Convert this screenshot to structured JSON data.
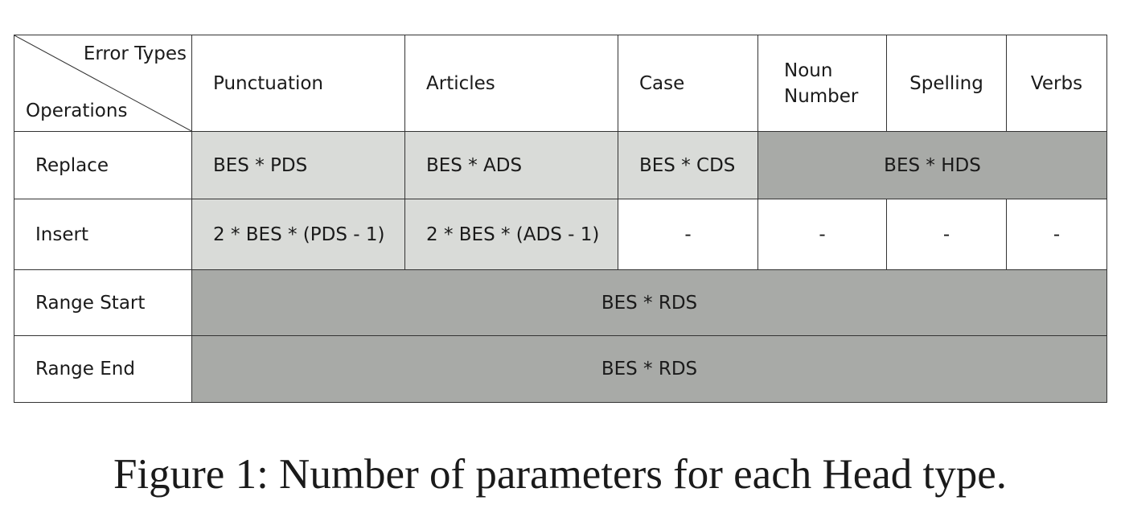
{
  "table": {
    "corner": {
      "col_label": "Error Types",
      "row_label": "Operations"
    },
    "columns": [
      "Punctuation",
      "Articles",
      "Case",
      "Noun Number",
      "Spelling",
      "Verbs"
    ],
    "column_noun_number_lines": [
      "Noun",
      "Number"
    ],
    "rows": [
      {
        "label": "Replace",
        "cells": [
          "BES * PDS",
          "BES * ADS",
          "BES * CDS",
          "BES * HDS"
        ]
      },
      {
        "label": "Insert",
        "cells": [
          "2 * BES * (PDS - 1)",
          "2 * BES * (ADS - 1)",
          "-",
          "-",
          "-",
          "-"
        ]
      },
      {
        "label": "Range Start",
        "cells": [
          "BES * RDS"
        ]
      },
      {
        "label": "Range End",
        "cells": [
          "BES * RDS"
        ]
      }
    ],
    "colors": {
      "light_gray": "#d9dbd8",
      "dark_gray": "#a8aaa7",
      "border": "#333333"
    }
  },
  "caption": "Figure 1: Number of parameters for each Head type."
}
